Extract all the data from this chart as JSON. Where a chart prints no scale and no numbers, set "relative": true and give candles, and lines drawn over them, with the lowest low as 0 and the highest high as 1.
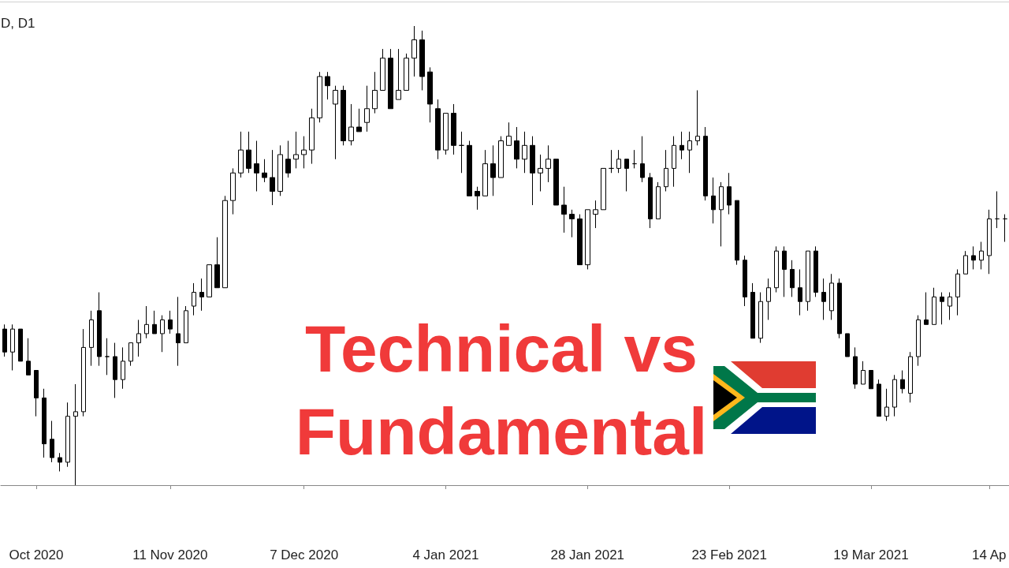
{
  "chart_data": {
    "type": "candlestick",
    "title": "D, D1",
    "relative": true,
    "color": "#000000",
    "annotations": [
      "Technical vs",
      "Fundamental"
    ],
    "categories": [
      null,
      null,
      null,
      null,
      "Oct 2020",
      null,
      null,
      null,
      null,
      null,
      null,
      null,
      null,
      null,
      null,
      null,
      null,
      null,
      null,
      null,
      null,
      "11 Nov 2020",
      null,
      null,
      null,
      null,
      null,
      null,
      null,
      null,
      null,
      null,
      null,
      null,
      null,
      null,
      null,
      null,
      "7 Dec 2020",
      null,
      null,
      null,
      null,
      null,
      null,
      null,
      null,
      null,
      null,
      null,
      null,
      null,
      null,
      null,
      null,
      null,
      "4 Jan 2021",
      null,
      null,
      null,
      null,
      null,
      null,
      null,
      null,
      null,
      null,
      null,
      null,
      null,
      null,
      null,
      null,
      null,
      "28 Jan 2021",
      null,
      null,
      null,
      null,
      null,
      null,
      null,
      null,
      null,
      null,
      null,
      null,
      null,
      null,
      null,
      null,
      null,
      "23 Feb 2021",
      null,
      null,
      null,
      null,
      null,
      null,
      null,
      null,
      null,
      null,
      null,
      null,
      null,
      null,
      null,
      null,
      null,
      "19 Mar 2021",
      null,
      null,
      null,
      null,
      null,
      null,
      null,
      null,
      null,
      null,
      null,
      null,
      null,
      null,
      "14 Ap",
      null,
      null
    ],
    "ohlc": [
      [
        0.34,
        0.35,
        0.28,
        0.29
      ],
      [
        0.29,
        0.35,
        0.25,
        0.34
      ],
      [
        0.34,
        0.34,
        0.27,
        0.27
      ],
      [
        0.27,
        0.32,
        0.24,
        0.24
      ],
      [
        0.25,
        0.25,
        0.15,
        0.19
      ],
      [
        0.19,
        0.21,
        0.06,
        0.09
      ],
      [
        0.1,
        0.14,
        0.05,
        0.06
      ],
      [
        0.06,
        0.07,
        0.03,
        0.05
      ],
      [
        0.05,
        0.18,
        0.04,
        0.15
      ],
      [
        0.15,
        0.22,
        0,
        0.16
      ],
      [
        0.16,
        0.34,
        0.15,
        0.3
      ],
      [
        0.3,
        0.38,
        0.26,
        0.36
      ],
      [
        0.38,
        0.42,
        0.26,
        0.28
      ],
      [
        0.28,
        0.32,
        0.24,
        0.28
      ],
      [
        0.28,
        0.31,
        0.19,
        0.23
      ],
      [
        0.23,
        0.3,
        0.21,
        0.27
      ],
      [
        0.27,
        0.31,
        0.26,
        0.31
      ],
      [
        0.31,
        0.36,
        0.28,
        0.33
      ],
      [
        0.33,
        0.39,
        0.32,
        0.35
      ],
      [
        0.35,
        0.38,
        0.33,
        0.33
      ],
      [
        0.33,
        0.37,
        0.29,
        0.36
      ],
      [
        0.36,
        0.38,
        0.33,
        0.34
      ],
      [
        0.33,
        0.41,
        0.26,
        0.31
      ],
      [
        0.31,
        0.39,
        0.31,
        0.38
      ],
      [
        0.39,
        0.44,
        0.37,
        0.42
      ],
      [
        0.42,
        0.45,
        0.38,
        0.41
      ],
      [
        0.41,
        0.48,
        0.41,
        0.48
      ],
      [
        0.48,
        0.54,
        0.43,
        0.43
      ],
      [
        0.43,
        0.63,
        0.43,
        0.62
      ],
      [
        0.62,
        0.69,
        0.59,
        0.68
      ],
      [
        0.68,
        0.77,
        0.67,
        0.73
      ],
      [
        0.73,
        0.77,
        0.68,
        0.69
      ],
      [
        0.7,
        0.75,
        0.64,
        0.68
      ],
      [
        0.68,
        0.71,
        0.66,
        0.67
      ],
      [
        0.67,
        0.73,
        0.61,
        0.64
      ],
      [
        0.64,
        0.74,
        0.63,
        0.72
      ],
      [
        0.71,
        0.75,
        0.67,
        0.68
      ],
      [
        0.71,
        0.77,
        0.69,
        0.72
      ],
      [
        0.72,
        0.76,
        0.69,
        0.73
      ],
      [
        0.73,
        0.82,
        0.7,
        0.8
      ],
      [
        0.8,
        0.9,
        0.79,
        0.89
      ],
      [
        0.89,
        0.9,
        0.84,
        0.87
      ],
      [
        0.83,
        0.87,
        0.71,
        0.86
      ],
      [
        0.86,
        0.87,
        0.74,
        0.75
      ],
      [
        0.75,
        0.83,
        0.74,
        0.78
      ],
      [
        0.78,
        0.82,
        0.77,
        0.77
      ],
      [
        0.79,
        0.87,
        0.77,
        0.82
      ],
      [
        0.82,
        0.9,
        0.81,
        0.86
      ],
      [
        0.86,
        0.95,
        0.86,
        0.93
      ],
      [
        0.93,
        0.95,
        0.82,
        0.82
      ],
      [
        0.84,
        0.95,
        0.84,
        0.86
      ],
      [
        0.86,
        0.94,
        0.86,
        0.93
      ],
      [
        0.93,
        1,
        0.89,
        0.97
      ],
      [
        0.97,
        0.99,
        0.86,
        0.89
      ],
      [
        0.9,
        0.91,
        0.79,
        0.83
      ],
      [
        0.82,
        0.84,
        0.71,
        0.73
      ],
      [
        0.73,
        0.81,
        0.72,
        0.81
      ],
      [
        0.81,
        0.83,
        0.72,
        0.74
      ],
      [
        0.74,
        0.77,
        0.68,
        0.74
      ],
      [
        0.74,
        0.75,
        0.63,
        0.63
      ],
      [
        0.64,
        0.65,
        0.6,
        0.63
      ],
      [
        0.63,
        0.73,
        0.63,
        0.7
      ],
      [
        0.7,
        0.74,
        0.63,
        0.67
      ],
      [
        0.67,
        0.76,
        0.67,
        0.75
      ],
      [
        0.74,
        0.79,
        0.74,
        0.76
      ],
      [
        0.75,
        0.78,
        0.69,
        0.71
      ],
      [
        0.71,
        0.77,
        0.68,
        0.74
      ],
      [
        0.74,
        0.76,
        0.61,
        0.68
      ],
      [
        0.68,
        0.72,
        0.64,
        0.69
      ],
      [
        0.69,
        0.74,
        0.66,
        0.71
      ],
      [
        0.71,
        0.71,
        0.61,
        0.61
      ],
      [
        0.61,
        0.65,
        0.55,
        0.59
      ],
      [
        0.59,
        0.6,
        0.54,
        0.58
      ],
      [
        0.58,
        0.59,
        0.48,
        0.48
      ],
      [
        0.48,
        0.6,
        0.47,
        0.6
      ],
      [
        0.59,
        0.62,
        0.56,
        0.6
      ],
      [
        0.6,
        0.69,
        0.6,
        0.69
      ],
      [
        0.69,
        0.73,
        0.68,
        0.69
      ],
      [
        0.69,
        0.73,
        0.68,
        0.71
      ],
      [
        0.71,
        0.71,
        0.64,
        0.69
      ],
      [
        0.7,
        0.73,
        0.69,
        0.7
      ],
      [
        0.7,
        0.76,
        0.66,
        0.67
      ],
      [
        0.67,
        0.68,
        0.56,
        0.58
      ],
      [
        0.58,
        0.66,
        0.58,
        0.65
      ],
      [
        0.65,
        0.73,
        0.64,
        0.69
      ],
      [
        0.69,
        0.76,
        0.65,
        0.74
      ],
      [
        0.74,
        0.77,
        0.71,
        0.73
      ],
      [
        0.73,
        0.77,
        0.68,
        0.75
      ],
      [
        0.75,
        0.86,
        0.74,
        0.76
      ],
      [
        0.76,
        0.78,
        0.62,
        0.63
      ],
      [
        0.63,
        0.67,
        0.57,
        0.6
      ],
      [
        0.6,
        0.66,
        0.52,
        0.65
      ],
      [
        0.65,
        0.68,
        0.59,
        0.61
      ],
      [
        0.62,
        0.62,
        0.48,
        0.49
      ],
      [
        0.49,
        0.5,
        0.39,
        0.41
      ],
      [
        0.42,
        0.44,
        0.32,
        0.32
      ],
      [
        0.32,
        0.42,
        0.31,
        0.4
      ],
      [
        0.4,
        0.45,
        0.36,
        0.43
      ],
      [
        0.43,
        0.52,
        0.42,
        0.51
      ],
      [
        0.51,
        0.52,
        0.41,
        0.47
      ],
      [
        0.47,
        0.49,
        0.41,
        0.43
      ],
      [
        0.43,
        0.47,
        0.37,
        0.4
      ],
      [
        0.4,
        0.51,
        0.38,
        0.51
      ],
      [
        0.51,
        0.52,
        0.41,
        0.42
      ],
      [
        0.42,
        0.45,
        0.36,
        0.4
      ],
      [
        0.38,
        0.46,
        0.36,
        0.44
      ],
      [
        0.44,
        0.45,
        0.32,
        0.33
      ],
      [
        0.33,
        0.33,
        0.28,
        0.28
      ],
      [
        0.28,
        0.3,
        0.21,
        0.22
      ],
      [
        0.22,
        0.27,
        0.22,
        0.25
      ],
      [
        0.25,
        0.25,
        0.21,
        0.21
      ],
      [
        0.22,
        0.23,
        0.15,
        0.15
      ],
      [
        0.15,
        0.21,
        0.14,
        0.17
      ],
      [
        0.17,
        0.24,
        0.15,
        0.23
      ],
      [
        0.23,
        0.25,
        0.2,
        0.21
      ],
      [
        0.2,
        0.29,
        0.18,
        0.28
      ],
      [
        0.28,
        0.37,
        0.26,
        0.36
      ],
      [
        0.36,
        0.42,
        0.35,
        0.35
      ],
      [
        0.35,
        0.43,
        0.35,
        0.41
      ],
      [
        0.41,
        0.42,
        0.35,
        0.4
      ],
      [
        0.39,
        0.42,
        0.36,
        0.41
      ],
      [
        0.41,
        0.47,
        0.37,
        0.46
      ],
      [
        0.46,
        0.51,
        0.46,
        0.5
      ],
      [
        0.5,
        0.52,
        0.47,
        0.49
      ],
      [
        0.49,
        0.53,
        0.47,
        0.51
      ],
      [
        0.5,
        0.6,
        0.46,
        0.58
      ],
      [
        0.58,
        0.64,
        0.56,
        0.58
      ],
      [
        0.58,
        0.59,
        0.53,
        0.58
      ]
    ]
  }
}
